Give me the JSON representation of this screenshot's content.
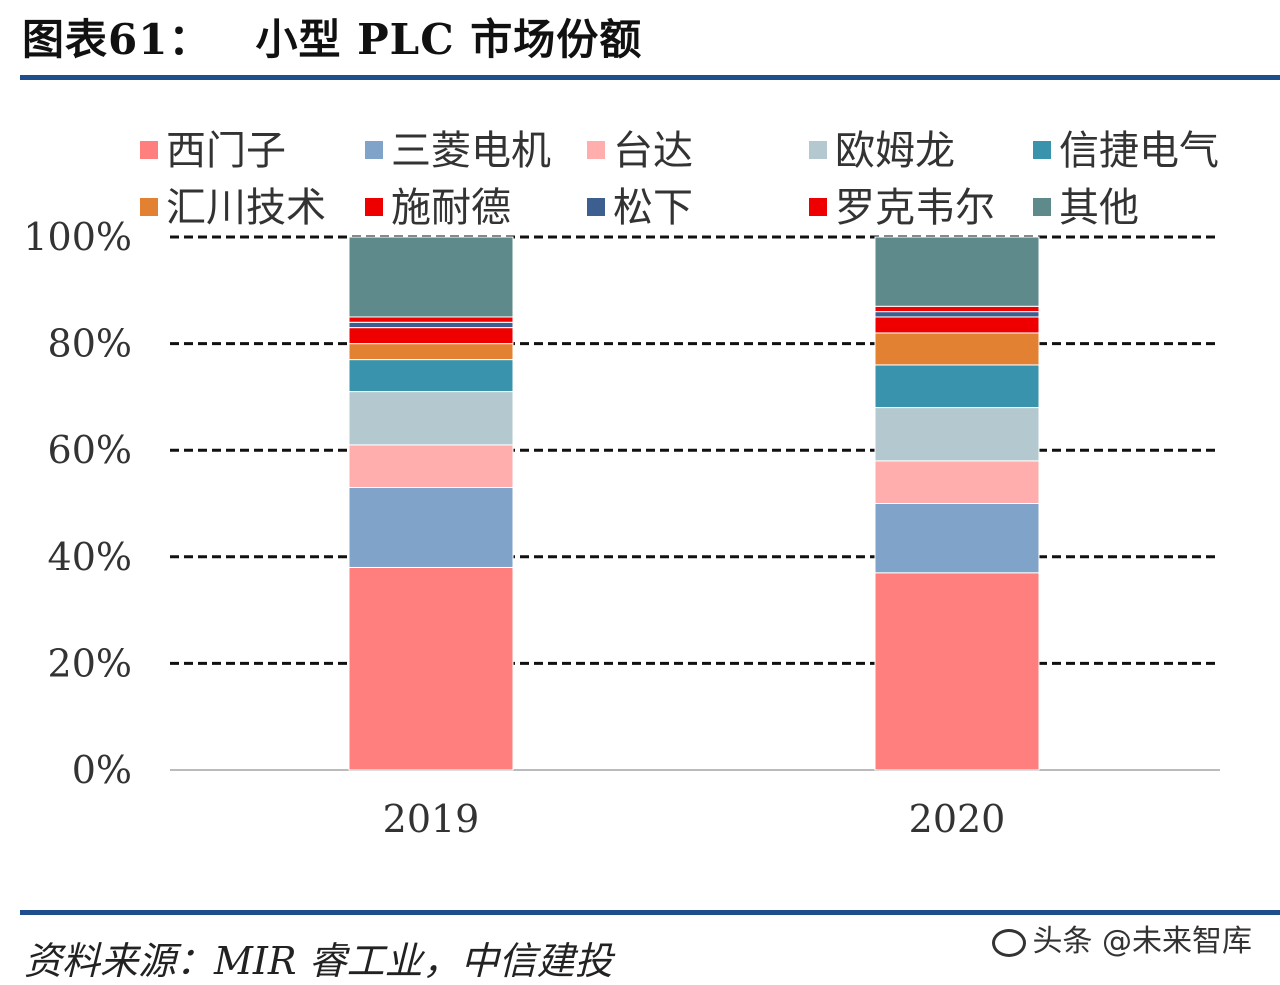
{
  "header": {
    "figure_label": "图表61：",
    "title": "小型 PLC 市场份额"
  },
  "chart_data": {
    "type": "bar",
    "stacked": true,
    "percent": true,
    "categories": [
      "2019",
      "2020"
    ],
    "yticks": [
      "0%",
      "20%",
      "40%",
      "60%",
      "80%",
      "100%"
    ],
    "ylim": [
      0,
      100
    ],
    "grid": true,
    "legend_position": "top",
    "series": [
      {
        "name": "西门子",
        "color": "#ff7f7f",
        "values": [
          38,
          37
        ]
      },
      {
        "name": "三菱电机",
        "color": "#80a3c9",
        "values": [
          15,
          13
        ]
      },
      {
        "name": "台达",
        "color": "#ffadad",
        "values": [
          8,
          8
        ]
      },
      {
        "name": "欧姆龙",
        "color": "#b3c9cf",
        "values": [
          10,
          10
        ]
      },
      {
        "name": "信捷电气",
        "color": "#3a93ad",
        "values": [
          6,
          8
        ]
      },
      {
        "name": "汇川技术",
        "color": "#e38133",
        "values": [
          3,
          6
        ]
      },
      {
        "name": "施耐德",
        "color": "#ee0000",
        "values": [
          3,
          3
        ]
      },
      {
        "name": "松下",
        "color": "#3d5f90",
        "values": [
          1,
          1
        ]
      },
      {
        "name": "罗克韦尔",
        "color": "#ee0000",
        "values": [
          1,
          1
        ]
      },
      {
        "name": "其他",
        "color": "#5f8a8b",
        "values": [
          15,
          13
        ]
      }
    ]
  },
  "footer": {
    "source": "资料来源：MIR 睿工业，中信建投",
    "watermark": "头条 @未来智库"
  }
}
